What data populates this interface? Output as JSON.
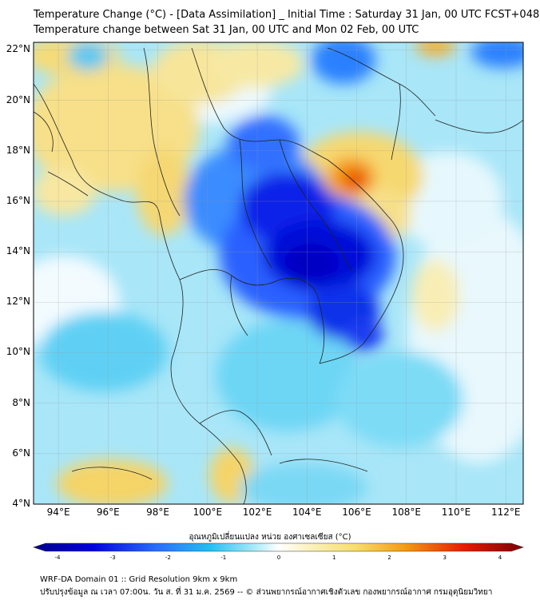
{
  "title": {
    "line1": "Temperature Change (°C) - [Data Assimilation] _ Initial Time : Saturday 31 Jan, 00 UTC FCST+048",
    "line2": "Temperature change between Sat 31 Jan, 00 UTC and Mon 02 Feb, 00 UTC"
  },
  "map": {
    "lat_labels": [
      "22°N",
      "20°N",
      "18°N",
      "16°N",
      "14°N",
      "12°N",
      "10°N",
      "8°N",
      "6°N",
      "4°N"
    ],
    "lon_labels": [
      "94°E",
      "96°E",
      "98°E",
      "100°E",
      "102°E",
      "104°E",
      "106°E",
      "108°E",
      "110°E",
      "112°E"
    ],
    "lat_range": [
      4,
      22.3
    ],
    "lon_range": [
      93,
      112.7
    ],
    "colors": {
      "cold_max": "#0000c8",
      "cold": "#1a3cff",
      "cool": "#22b8f0",
      "light": "#9ee4f8",
      "neutral": "#f4fbff",
      "warm": "#f7e89a",
      "hot": "#f4b400",
      "max": "#e02000",
      "border": "#202020"
    }
  },
  "colorbar": {
    "title": "อุณหภูมิเปลี่ยนแปลง หน่วย องศาเซลเซียส (°C)",
    "ticks": [
      "-4",
      "-3",
      "-2",
      "-1",
      "0",
      "1",
      "2",
      "3",
      "4"
    ]
  },
  "footer": {
    "line1": "WRF-DA Domain 01 :: Grid Resolution 9km x 9km",
    "line2": "ปรับปรุงข้อมูล ณ เวลา 07:00น. วัน ส. ที่ 31 ม.ค. 2569 -- © ส่วนพยากรณ์อากาศเชิงตัวเลข กองพยากรณ์อากาศ กรมอุตุนิยมวิทยา"
  }
}
